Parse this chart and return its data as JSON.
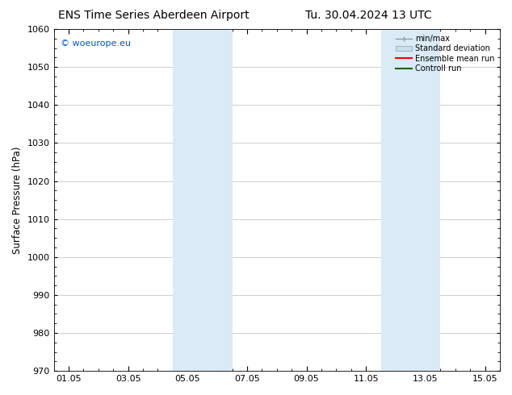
{
  "title_left": "ENS Time Series Aberdeen Airport",
  "title_right": "Tu. 30.04.2024 13 UTC",
  "ylabel": "Surface Pressure (hPa)",
  "ylim": [
    970,
    1060
  ],
  "yticks": [
    970,
    980,
    990,
    1000,
    1010,
    1020,
    1030,
    1040,
    1050,
    1060
  ],
  "xtick_labels": [
    "01.05",
    "03.05",
    "05.05",
    "07.05",
    "09.05",
    "11.05",
    "13.05",
    "15.05"
  ],
  "xtick_positions": [
    0,
    2,
    4,
    6,
    8,
    10,
    12,
    14
  ],
  "xlim": [
    -0.5,
    14.5
  ],
  "watermark": "© woeurope.eu",
  "watermark_color": "#0055cc",
  "shaded_bands": [
    {
      "x_start": 3.5,
      "x_end": 5.5
    },
    {
      "x_start": 10.5,
      "x_end": 12.5
    }
  ],
  "shaded_color": "#daeaf7",
  "background_color": "#ffffff",
  "grid_color": "#bbbbbb",
  "legend_items": [
    {
      "label": "min/max",
      "color": "#999999",
      "style": "line_with_caps"
    },
    {
      "label": "Standard deviation",
      "color": "#c8dff0",
      "style": "box"
    },
    {
      "label": "Ensemble mean run",
      "color": "#ff0000",
      "style": "line"
    },
    {
      "label": "Controll run",
      "color": "#006600",
      "style": "line"
    }
  ],
  "title_fontsize": 10,
  "axis_fontsize": 8.5,
  "tick_fontsize": 8,
  "watermark_fontsize": 8
}
